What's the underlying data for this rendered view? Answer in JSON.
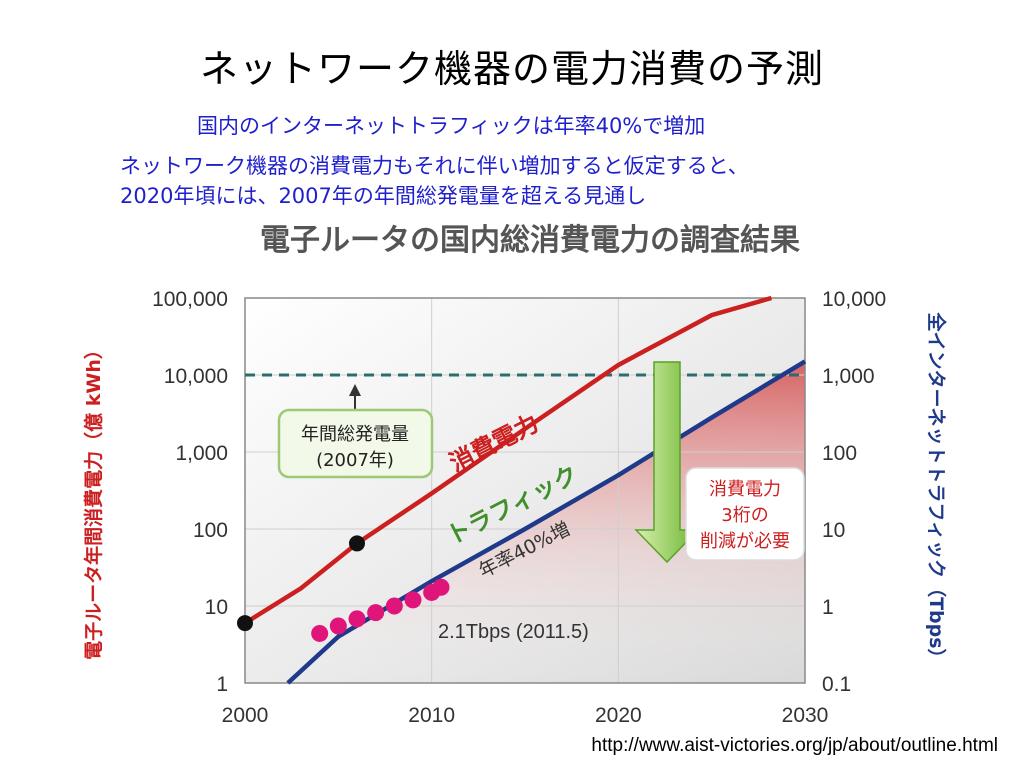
{
  "slide": {
    "title": "ネットワーク機器の電力消費の予測",
    "lines": [
      "国内のインターネットトラフィックは年率40%で増加",
      "ネットワーク機器の消費電力もそれに伴い増加すると仮定すると、",
      "2020年頃には、2007年の年間総発電量を超える見通し"
    ],
    "source_url": "http://www.aist-victories.org/jp/about/outline.html"
  },
  "colors": {
    "power": "#cc1f1f",
    "traffic": "#1f3a8a",
    "text_blue": "#1f1fcc",
    "arrow": "#7bc043",
    "dots": "#e0157a"
  },
  "chart_data": {
    "type": "line",
    "title": "電子ルータの国内総消費電力の調査結果",
    "x_ticks": [
      2000,
      2010,
      2020,
      2030
    ],
    "xlim": [
      2000,
      2030
    ],
    "y_left": {
      "label": "電子ルータ年間消費電力（億 kWh）",
      "scale": "log",
      "ylim": [
        1,
        100000
      ],
      "ticks": [
        "100,000",
        "10,000",
        "1,000",
        "100",
        "10",
        "1"
      ]
    },
    "y_right": {
      "label": "全インターネットトラフィック（Tbps）",
      "scale": "log",
      "ylim": [
        0.1,
        10000
      ],
      "ticks": [
        "10,000",
        "1,000",
        "100",
        "10",
        "1",
        "0.1"
      ]
    },
    "series": [
      {
        "name": "消費電力",
        "axis": "left",
        "x": [
          2000,
          2003,
          2006,
          2010,
          2015,
          2020,
          2025,
          2028.2
        ],
        "y": [
          6,
          17,
          65,
          290,
          2000,
          13500,
          60000,
          100000
        ]
      },
      {
        "name": "トラフィック",
        "axis": "right",
        "x": [
          2002.3,
          2005,
          2010,
          2015,
          2020,
          2025,
          2030
        ],
        "y": [
          0.1,
          0.4,
          2.1,
          10,
          50,
          280,
          1500
        ]
      }
    ],
    "power_measured": {
      "x": [
        2000,
        2006
      ],
      "y": [
        6,
        65
      ]
    },
    "traffic_measured": {
      "x": [
        2004,
        2005,
        2006,
        2007,
        2008,
        2009,
        2010,
        2010.5
      ],
      "y": [
        0.44,
        0.55,
        0.68,
        0.82,
        1.0,
        1.2,
        1.5,
        1.75
      ]
    },
    "reference_line": {
      "value": 10000,
      "axis": "left",
      "label": "年間総発電量\n(2007年)"
    },
    "annotations": {
      "total_generation_label": [
        "年間総発電量",
        "(2007年)"
      ],
      "power_label": "消費電力",
      "traffic_label": "トラフィック",
      "growth_label": "年率40%増",
      "traffic_point_label": "2.1Tbps (2011.5)",
      "reduction_label": [
        "消費電力",
        "3桁の",
        "削減が必要"
      ]
    }
  }
}
